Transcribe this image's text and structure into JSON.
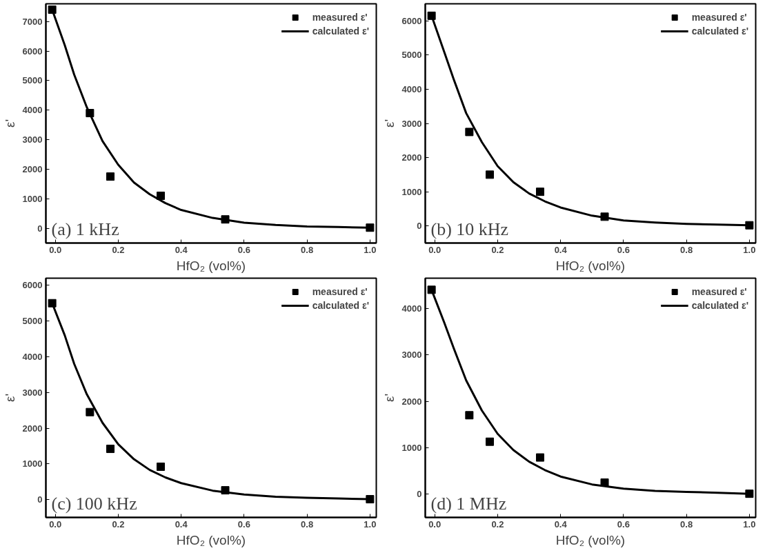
{
  "chart_data": [
    {
      "type": "scatter",
      "xlabel": "HfO₂ (vol%)",
      "ylabel": "ε'",
      "annotations": [
        "(a) 1 kHz"
      ],
      "legend": "top right",
      "grid": false,
      "xlim": [
        -0.03,
        1.02
      ],
      "ylim": [
        -500,
        7600
      ],
      "xticks": [
        {
          "value": 0,
          "label": "0.0"
        },
        {
          "value": 0.2,
          "label": "0.2"
        },
        {
          "value": 0.4,
          "label": "0.4"
        },
        {
          "value": 0.6,
          "label": "0.6"
        },
        {
          "value": 0.8,
          "label": "0.8"
        },
        {
          "value": 1,
          "label": "1.0"
        }
      ],
      "yticks": [
        0,
        1000,
        2000,
        3000,
        4000,
        5000,
        6000,
        7000
      ],
      "series": [
        {
          "name": "measured ε'",
          "marker": "square",
          "color": "#000000",
          "x": [
            -0.01,
            0.11,
            0.175,
            0.335,
            0.54,
            1.0
          ],
          "values": [
            7400,
            3900,
            1750,
            1100,
            300,
            20
          ]
        },
        {
          "name": "calculated ε'",
          "type": "line",
          "line_style": "solid",
          "color": "#000000",
          "x": [
            -0.01,
            0.03,
            0.06,
            0.1,
            0.15,
            0.2,
            0.25,
            0.3,
            0.35,
            0.4,
            0.5,
            0.6,
            0.7,
            0.8,
            0.9,
            1.0
          ],
          "values": [
            7400,
            6200,
            5200,
            4100,
            2950,
            2150,
            1550,
            1150,
            850,
            620,
            350,
            190,
            110,
            60,
            40,
            20
          ]
        }
      ]
    },
    {
      "type": "scatter",
      "xlabel": "HfO₂ (vol%)",
      "ylabel": "ε'",
      "annotations": [
        "(b) 10 kHz"
      ],
      "legend": "top right",
      "grid": false,
      "xlim": [
        -0.03,
        1.02
      ],
      "ylim": [
        -500,
        6500
      ],
      "xticks": [
        {
          "value": 0,
          "label": "0.0"
        },
        {
          "value": 0.2,
          "label": "0.2"
        },
        {
          "value": 0.4,
          "label": "0.4"
        },
        {
          "value": 0.6,
          "label": "0.6"
        },
        {
          "value": 0.8,
          "label": "0.8"
        },
        {
          "value": 1,
          "label": "1.0"
        }
      ],
      "yticks": [
        0,
        1000,
        2000,
        3000,
        4000,
        5000,
        6000
      ],
      "series": [
        {
          "name": "measured ε'",
          "marker": "square",
          "color": "#000000",
          "x": [
            -0.01,
            0.11,
            0.175,
            0.335,
            0.54,
            1.0
          ],
          "values": [
            6150,
            2750,
            1500,
            1000,
            270,
            20
          ]
        },
        {
          "name": "calculated ε'",
          "type": "line",
          "line_style": "solid",
          "color": "#000000",
          "x": [
            -0.01,
            0.03,
            0.06,
            0.1,
            0.15,
            0.2,
            0.25,
            0.3,
            0.35,
            0.4,
            0.5,
            0.6,
            0.7,
            0.8,
            0.9,
            1.0
          ],
          "values": [
            6150,
            5100,
            4300,
            3300,
            2450,
            1750,
            1280,
            950,
            720,
            540,
            300,
            160,
            100,
            60,
            40,
            20
          ]
        }
      ]
    },
    {
      "type": "scatter",
      "xlabel": "HfO₂ (vol%)",
      "ylabel": "ε'",
      "annotations": [
        "(c) 100 kHz"
      ],
      "legend": "top right",
      "grid": false,
      "xlim": [
        -0.03,
        1.02
      ],
      "ylim": [
        -500,
        6200
      ],
      "xticks": [
        {
          "value": 0,
          "label": "0.0"
        },
        {
          "value": 0.2,
          "label": "0.2"
        },
        {
          "value": 0.4,
          "label": "0.4"
        },
        {
          "value": 0.6,
          "label": "0.6"
        },
        {
          "value": 0.8,
          "label": "0.8"
        },
        {
          "value": 1,
          "label": "1.0"
        }
      ],
      "yticks": [
        0,
        1000,
        2000,
        3000,
        4000,
        5000,
        6000
      ],
      "series": [
        {
          "name": "measured ε'",
          "marker": "square",
          "color": "#000000",
          "x": [
            -0.01,
            0.11,
            0.175,
            0.335,
            0.54,
            1.0
          ],
          "values": [
            5500,
            2450,
            1420,
            920,
            260,
            10
          ]
        },
        {
          "name": "calculated ε'",
          "type": "line",
          "line_style": "solid",
          "color": "#000000",
          "x": [
            -0.01,
            0.03,
            0.06,
            0.1,
            0.15,
            0.2,
            0.25,
            0.3,
            0.35,
            0.4,
            0.5,
            0.6,
            0.7,
            0.8,
            0.9,
            1.0
          ],
          "values": [
            5500,
            4600,
            3800,
            2950,
            2150,
            1550,
            1130,
            830,
            620,
            460,
            250,
            140,
            80,
            50,
            30,
            10
          ]
        }
      ]
    },
    {
      "type": "scatter",
      "xlabel": "HfO₂ (vol%)",
      "ylabel": "ε'",
      "annotations": [
        "(d) 1 MHz"
      ],
      "legend": "top right",
      "grid": false,
      "xlim": [
        -0.03,
        1.02
      ],
      "ylim": [
        -500,
        4650
      ],
      "xticks": [
        {
          "value": 0,
          "label": "0.0"
        },
        {
          "value": 0.2,
          "label": "0.2"
        },
        {
          "value": 0.4,
          "label": "0.4"
        },
        {
          "value": 0.6,
          "label": "0.6"
        },
        {
          "value": 0.8,
          "label": "0.8"
        },
        {
          "value": 1,
          "label": "1.0"
        }
      ],
      "yticks": [
        0,
        1000,
        2000,
        3000,
        4000
      ],
      "series": [
        {
          "name": "measured ε'",
          "marker": "square",
          "color": "#000000",
          "x": [
            -0.01,
            0.11,
            0.175,
            0.335,
            0.54,
            1.0
          ],
          "values": [
            4400,
            1700,
            1130,
            790,
            250,
            10
          ]
        },
        {
          "name": "calculated ε'",
          "type": "line",
          "line_style": "solid",
          "color": "#000000",
          "x": [
            -0.01,
            0.03,
            0.06,
            0.1,
            0.15,
            0.2,
            0.25,
            0.3,
            0.35,
            0.4,
            0.5,
            0.6,
            0.7,
            0.8,
            0.9,
            1.0
          ],
          "values": [
            4400,
            3700,
            3150,
            2450,
            1800,
            1300,
            950,
            700,
            520,
            380,
            210,
            120,
            70,
            50,
            30,
            10
          ]
        }
      ]
    }
  ]
}
